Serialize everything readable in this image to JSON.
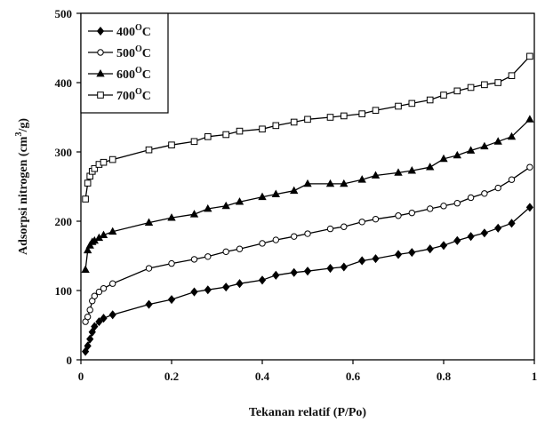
{
  "chart_data": {
    "type": "line",
    "title": "",
    "xlabel": "Tekanan relatif (P/Po)",
    "ylabel_main": "Adsorpsi nitrogen (cm",
    "ylabel_sup": "3",
    "ylabel_tail": "/g)",
    "xlim": [
      0,
      1
    ],
    "ylim": [
      0,
      500
    ],
    "x_ticks": [
      "0",
      "0.2",
      "0.4",
      "0.6",
      "0.8",
      "1"
    ],
    "y_ticks": [
      "0",
      "100",
      "200",
      "300",
      "400",
      "500"
    ],
    "grid": false,
    "legend_position": "top-left",
    "series": [
      {
        "name": "400",
        "name_sup": "O",
        "name_tail": "C",
        "marker": "diamond-filled",
        "x": [
          0.01,
          0.015,
          0.02,
          0.025,
          0.03,
          0.04,
          0.05,
          0.07,
          0.15,
          0.2,
          0.25,
          0.28,
          0.32,
          0.35,
          0.4,
          0.43,
          0.47,
          0.5,
          0.55,
          0.58,
          0.62,
          0.65,
          0.7,
          0.73,
          0.77,
          0.8,
          0.83,
          0.86,
          0.89,
          0.92,
          0.95,
          0.99
        ],
        "y": [
          12,
          20,
          30,
          40,
          48,
          55,
          60,
          65,
          80,
          87,
          98,
          101,
          105,
          110,
          115,
          122,
          126,
          128,
          132,
          134,
          143,
          146,
          152,
          155,
          160,
          165,
          172,
          178,
          183,
          190,
          197,
          220
        ]
      },
      {
        "name": "500",
        "name_sup": "O",
        "name_tail": "C",
        "marker": "circle-open",
        "x": [
          0.01,
          0.015,
          0.02,
          0.025,
          0.03,
          0.04,
          0.05,
          0.07,
          0.15,
          0.2,
          0.25,
          0.28,
          0.32,
          0.35,
          0.4,
          0.43,
          0.47,
          0.5,
          0.55,
          0.58,
          0.62,
          0.65,
          0.7,
          0.73,
          0.77,
          0.8,
          0.83,
          0.86,
          0.89,
          0.92,
          0.95,
          0.99
        ],
        "y": [
          55,
          62,
          72,
          85,
          92,
          98,
          103,
          110,
          132,
          139,
          145,
          149,
          156,
          160,
          168,
          173,
          178,
          182,
          189,
          192,
          199,
          203,
          208,
          212,
          218,
          222,
          226,
          234,
          240,
          248,
          260,
          278
        ]
      },
      {
        "name": "600",
        "name_sup": "O",
        "name_tail": "C",
        "marker": "triangle-filled",
        "x": [
          0.01,
          0.015,
          0.02,
          0.025,
          0.03,
          0.04,
          0.05,
          0.07,
          0.15,
          0.2,
          0.25,
          0.28,
          0.32,
          0.35,
          0.4,
          0.43,
          0.47,
          0.5,
          0.55,
          0.58,
          0.62,
          0.65,
          0.7,
          0.73,
          0.77,
          0.8,
          0.83,
          0.86,
          0.89,
          0.92,
          0.95,
          0.99
        ],
        "y": [
          130,
          158,
          165,
          170,
          172,
          176,
          180,
          185,
          198,
          205,
          210,
          218,
          222,
          228,
          235,
          239,
          244,
          254,
          254,
          254,
          260,
          266,
          270,
          273,
          278,
          290,
          295,
          302,
          308,
          315,
          322,
          347
        ]
      },
      {
        "name": "700",
        "name_sup": "O",
        "name_tail": "C",
        "marker": "square-open",
        "x": [
          0.01,
          0.015,
          0.02,
          0.025,
          0.03,
          0.04,
          0.05,
          0.07,
          0.15,
          0.2,
          0.25,
          0.28,
          0.32,
          0.35,
          0.4,
          0.43,
          0.47,
          0.5,
          0.55,
          0.58,
          0.62,
          0.65,
          0.7,
          0.73,
          0.77,
          0.8,
          0.83,
          0.86,
          0.89,
          0.92,
          0.95,
          0.99
        ],
        "y": [
          232,
          255,
          265,
          272,
          276,
          282,
          285,
          289,
          303,
          310,
          315,
          322,
          325,
          330,
          333,
          338,
          343,
          347,
          350,
          352,
          355,
          360,
          366,
          370,
          375,
          382,
          388,
          393,
          397,
          400,
          410,
          438
        ]
      }
    ]
  }
}
